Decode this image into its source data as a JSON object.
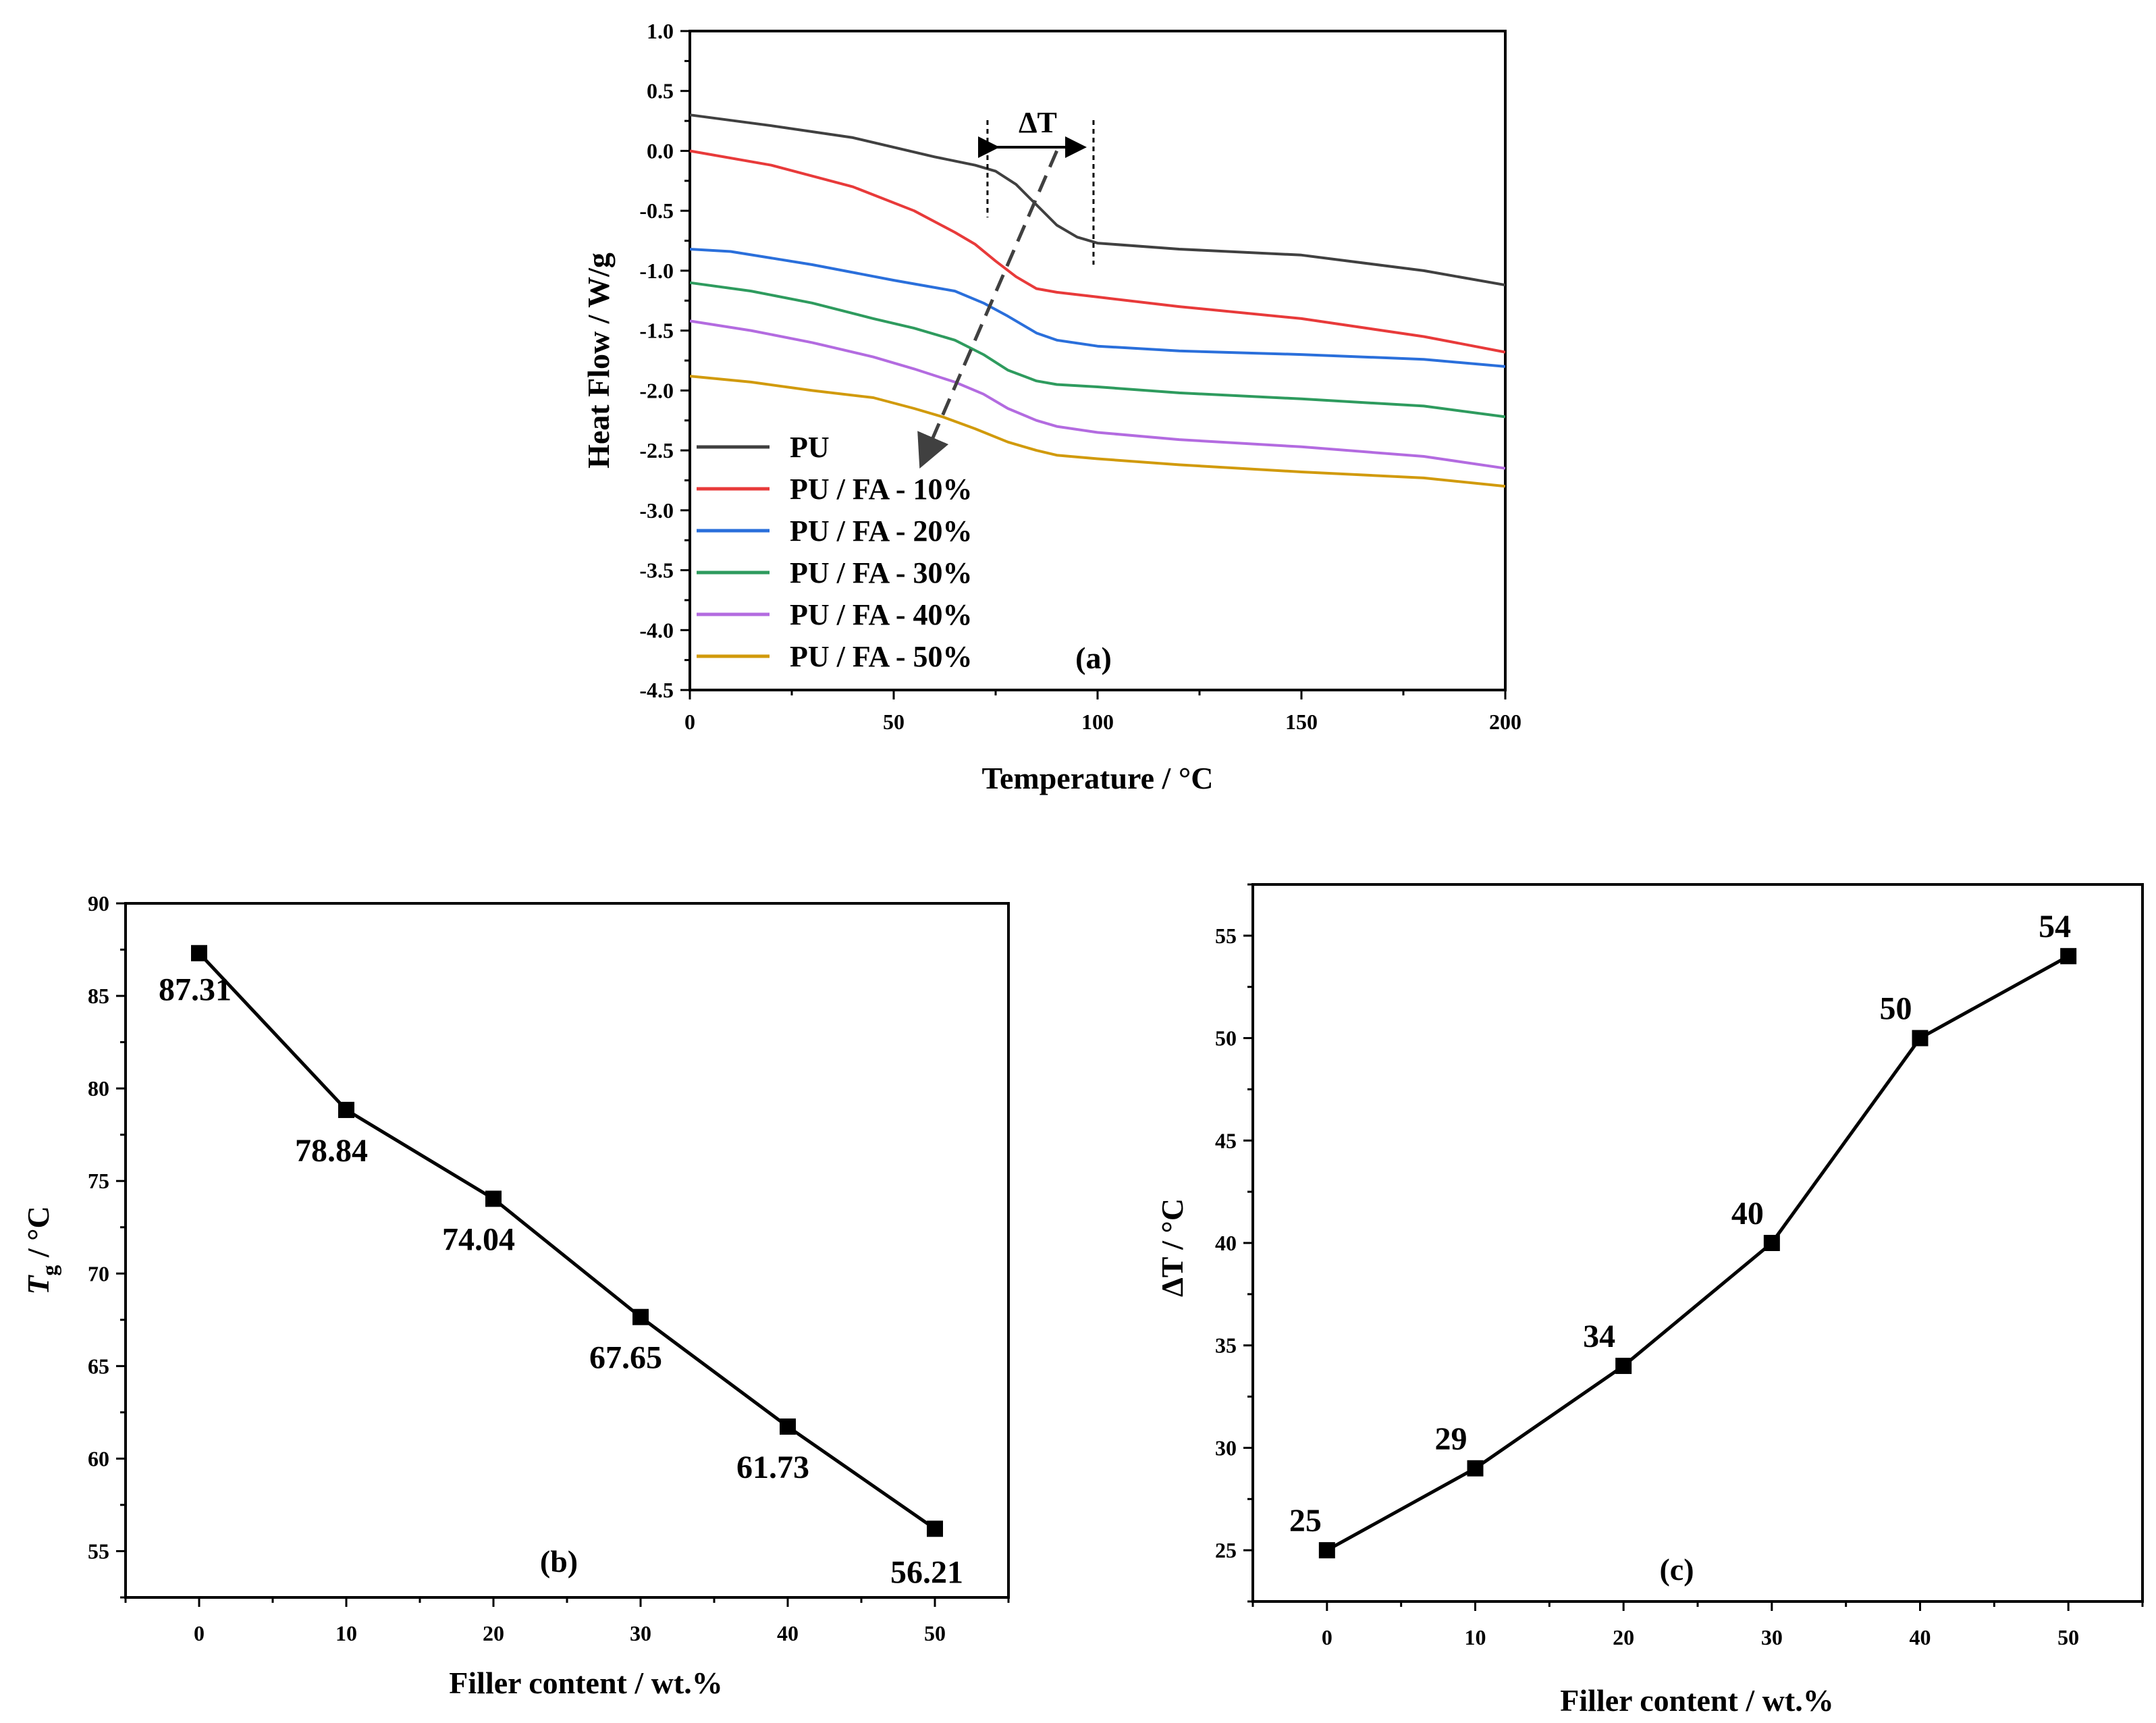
{
  "chart_data": [
    {
      "id": "a",
      "type": "line",
      "panel_label": "(a)",
      "xlabel": "Temperature / °C",
      "ylabel": "Heat Flow / W/g",
      "xlim": [
        0,
        200
      ],
      "ylim": [
        -4.5,
        1.0
      ],
      "xticks": [
        0,
        50,
        100,
        150,
        200
      ],
      "xtick_labels": [
        "0",
        "50",
        "100",
        "150",
        "200"
      ],
      "yticks": [
        1.0,
        0.5,
        0.0,
        -0.5,
        -1.0,
        -1.5,
        -2.0,
        -2.5,
        -3.0,
        -3.5,
        -4.0,
        -4.5
      ],
      "ytick_labels": [
        "1.0",
        "0.5",
        "0.0",
        "-0.5",
        "-1.0",
        "-1.5",
        "-2.0",
        "-2.5",
        "-3.0",
        "-3.5",
        "-4.0",
        "-4.5"
      ],
      "annotation": {
        "text": "ΔT",
        "range": [
          73,
          99
        ],
        "arrow_from": [
          90,
          0.0
        ],
        "arrow_to": [
          57,
          -2.6
        ]
      },
      "series": [
        {
          "name": "PU",
          "color": "#404040",
          "x": [
            0,
            20,
            40,
            60,
            70,
            75,
            80,
            85,
            90,
            95,
            100,
            120,
            150,
            180,
            200
          ],
          "y": [
            0.3,
            0.21,
            0.11,
            -0.05,
            -0.12,
            -0.17,
            -0.28,
            -0.45,
            -0.62,
            -0.72,
            -0.77,
            -0.82,
            -0.87,
            -1.0,
            -1.12
          ]
        },
        {
          "name": "PU / FA - 10%",
          "color": "#e83a3a",
          "x": [
            0,
            20,
            40,
            55,
            65,
            70,
            75,
            80,
            85,
            90,
            100,
            120,
            150,
            180,
            200
          ],
          "y": [
            0.0,
            -0.12,
            -0.3,
            -0.5,
            -0.68,
            -0.78,
            -0.92,
            -1.05,
            -1.15,
            -1.18,
            -1.22,
            -1.3,
            -1.4,
            -1.55,
            -1.68
          ]
        },
        {
          "name": "PU / FA - 20%",
          "color": "#2a6fdb",
          "x": [
            0,
            10,
            30,
            50,
            65,
            72,
            78,
            85,
            90,
            100,
            120,
            150,
            180,
            200
          ],
          "y": [
            -0.82,
            -0.84,
            -0.95,
            -1.08,
            -1.17,
            -1.27,
            -1.38,
            -1.52,
            -1.58,
            -1.63,
            -1.67,
            -1.7,
            -1.74,
            -1.8
          ]
        },
        {
          "name": "PU / FA - 30%",
          "color": "#2e9b5e",
          "x": [
            0,
            15,
            30,
            45,
            55,
            65,
            72,
            78,
            85,
            90,
            100,
            120,
            150,
            180,
            200
          ],
          "y": [
            -1.1,
            -1.17,
            -1.27,
            -1.4,
            -1.48,
            -1.58,
            -1.7,
            -1.83,
            -1.92,
            -1.95,
            -1.97,
            -2.02,
            -2.07,
            -2.13,
            -2.22
          ]
        },
        {
          "name": "PU / FA - 40%",
          "color": "#b36be0",
          "x": [
            0,
            15,
            30,
            45,
            55,
            65,
            72,
            78,
            85,
            90,
            100,
            120,
            150,
            180,
            200
          ],
          "y": [
            -1.42,
            -1.5,
            -1.6,
            -1.72,
            -1.82,
            -1.93,
            -2.03,
            -2.15,
            -2.25,
            -2.3,
            -2.35,
            -2.41,
            -2.47,
            -2.55,
            -2.65
          ]
        },
        {
          "name": "PU / FA - 50%",
          "color": "#d19a0b",
          "x": [
            0,
            15,
            30,
            45,
            55,
            62,
            70,
            78,
            85,
            90,
            100,
            120,
            150,
            180,
            200
          ],
          "y": [
            -1.88,
            -1.93,
            -2.0,
            -2.06,
            -2.15,
            -2.22,
            -2.32,
            -2.43,
            -2.5,
            -2.54,
            -2.57,
            -2.62,
            -2.68,
            -2.73,
            -2.8
          ]
        }
      ]
    },
    {
      "id": "b",
      "type": "line",
      "panel_label": "(b)",
      "xlabel": "Filler content / wt.%",
      "ylabel_main": "T",
      "ylabel_sub": "g",
      "ylabel_rest": " / °C",
      "xlim": [
        -5,
        55
      ],
      "ylim": [
        52.5,
        90
      ],
      "xticks": [
        0,
        10,
        20,
        30,
        40,
        50
      ],
      "xtick_labels": [
        "0",
        "10",
        "20",
        "30",
        "40",
        "50"
      ],
      "yticks": [
        55,
        60,
        65,
        70,
        75,
        80,
        85,
        90
      ],
      "ytick_labels": [
        "55",
        "60",
        "65",
        "70",
        "75",
        "80",
        "85",
        "90"
      ],
      "x": [
        0,
        10,
        20,
        30,
        40,
        50
      ],
      "y": [
        87.31,
        78.84,
        74.04,
        67.65,
        61.73,
        56.21
      ],
      "labels": [
        "87.31",
        "78.84",
        "74.04",
        "67.65",
        "61.73",
        "56.21"
      ]
    },
    {
      "id": "c",
      "type": "line",
      "panel_label": "(c)",
      "xlabel": "Filler content / wt.%",
      "ylabel": "ΔT / °C",
      "xlim": [
        -5,
        55
      ],
      "ylim": [
        22.5,
        57.5
      ],
      "xticks": [
        0,
        10,
        20,
        30,
        40,
        50
      ],
      "xtick_labels": [
        "0",
        "10",
        "20",
        "30",
        "40",
        "50"
      ],
      "yticks": [
        25,
        30,
        35,
        40,
        45,
        50,
        55
      ],
      "ytick_labels": [
        "25",
        "30",
        "35",
        "40",
        "45",
        "50",
        "55"
      ],
      "x": [
        0,
        10,
        20,
        30,
        40,
        50
      ],
      "y": [
        25,
        29,
        34,
        40,
        50,
        54
      ],
      "labels": [
        "25",
        "29",
        "34",
        "40",
        "50",
        "54"
      ]
    }
  ]
}
